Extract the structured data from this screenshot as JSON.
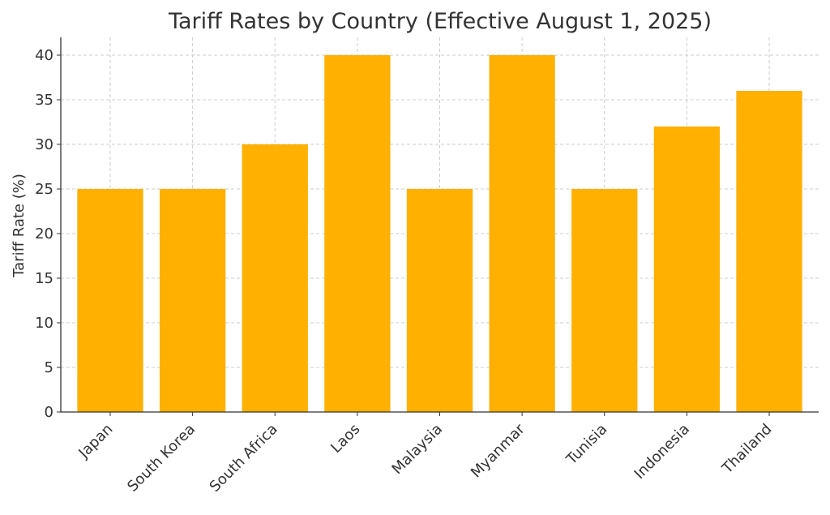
{
  "chart_data": {
    "type": "bar",
    "title": "Tariff Rates by Country (Effective August 1, 2025)",
    "xlabel": "",
    "ylabel": "Tariff Rate (%)",
    "categories": [
      "Japan",
      "South Korea",
      "South Africa",
      "Laos",
      "Malaysia",
      "Myanmar",
      "Tunisia",
      "Indonesia",
      "Thailand"
    ],
    "values": [
      25,
      25,
      30,
      40,
      25,
      40,
      25,
      32,
      36
    ],
    "ylim": [
      0,
      42
    ],
    "yticks": [
      0,
      5,
      10,
      15,
      20,
      25,
      30,
      35,
      40
    ],
    "grid": true,
    "bar_color": "#FFB000"
  }
}
